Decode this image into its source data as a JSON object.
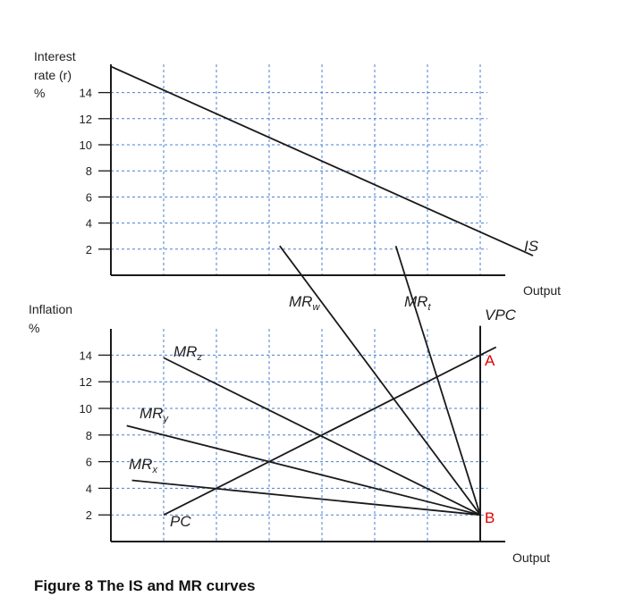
{
  "caption": "Figure 8 The IS and MR curves",
  "colors": {
    "grid": "#4a7fd0",
    "line": "#1a1a1a",
    "point_label": "#e00000"
  },
  "chart_data": [
    {
      "type": "line",
      "title": "",
      "ylabel_lines": [
        "Interest",
        "rate (r)",
        "%"
      ],
      "xlabel": "Output",
      "y_ticks": [
        2,
        4,
        6,
        8,
        10,
        12,
        14
      ],
      "ylim": [
        0,
        15.5
      ],
      "xlim": [
        0,
        7
      ],
      "grid": true,
      "series": [
        {
          "name": "IS",
          "label_main": "IS",
          "label_sub": "",
          "x": [
            -1.0,
            7.0
          ],
          "y": [
            16.0,
            1.5
          ]
        }
      ]
    },
    {
      "type": "line",
      "title": "",
      "ylabel_lines": [
        "Inflation",
        "%"
      ],
      "xlabel": "Output",
      "y_ticks": [
        2,
        4,
        6,
        8,
        10,
        12,
        14
      ],
      "ylim": [
        0,
        15.5
      ],
      "xlim": [
        0,
        7
      ],
      "grid": true,
      "series": [
        {
          "name": "MRw",
          "label_main": "MR",
          "label_sub": "w",
          "x": [
            2.2,
            6.0
          ],
          "y": [
            22.2,
            2.0
          ]
        },
        {
          "name": "MRt",
          "label_main": "MR",
          "label_sub": "t",
          "x": [
            4.4,
            6.0
          ],
          "y": [
            22.2,
            2.0
          ]
        },
        {
          "name": "MRz",
          "label_main": "MR",
          "label_sub": "z",
          "x": [
            0.0,
            6.0
          ],
          "y": [
            13.8,
            2.0
          ]
        },
        {
          "name": "MRy",
          "label_main": "MR",
          "label_sub": "y",
          "x": [
            -0.7,
            6.0
          ],
          "y": [
            8.7,
            2.0
          ]
        },
        {
          "name": "MRx",
          "label_main": "MR",
          "label_sub": "x",
          "x": [
            -0.6,
            6.0
          ],
          "y": [
            4.6,
            2.0
          ]
        },
        {
          "name": "PC",
          "label_main": "PC",
          "label_sub": "",
          "x": [
            0.0,
            6.3
          ],
          "y": [
            2.0,
            14.6
          ]
        },
        {
          "name": "VPC",
          "label_main": "VPC",
          "label_sub": "",
          "x": [
            6.0,
            6.0
          ],
          "y": [
            0.0,
            16.2
          ]
        }
      ],
      "points": [
        {
          "label": "A",
          "x": 6.0,
          "y": 14.0
        },
        {
          "label": "B",
          "x": 6.0,
          "y": 2.0
        }
      ]
    }
  ]
}
